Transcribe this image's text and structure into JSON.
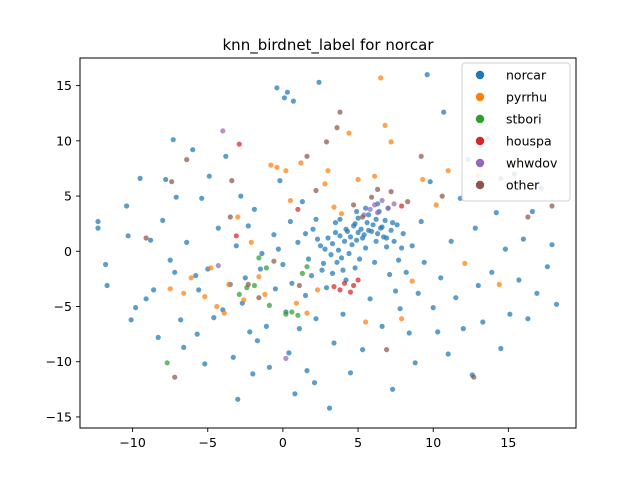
{
  "chart_data": {
    "type": "scatter",
    "title": "knn_birdnet_label for norcar",
    "xlabel": "",
    "ylabel": "",
    "xlim": [
      -13.5,
      19.5
    ],
    "ylim": [
      -16,
      17.5
    ],
    "xticks": [
      -10,
      -5,
      0,
      5,
      10,
      15
    ],
    "yticks": [
      -15,
      -10,
      -5,
      0,
      5,
      10,
      15
    ],
    "grid": false,
    "legend_position": "top-right",
    "series": [
      {
        "name": "norcar",
        "color": "#1f77b4",
        "points": [
          [
            -12.3,
            2.7
          ],
          [
            -12.3,
            2.1
          ],
          [
            -11.8,
            -1.2
          ],
          [
            -11.7,
            -3.1
          ],
          [
            -10.4,
            4.1
          ],
          [
            -10.3,
            1.4
          ],
          [
            -10.1,
            -6.2
          ],
          [
            -9.8,
            -5.1
          ],
          [
            -9.5,
            6.6
          ],
          [
            -9.1,
            -4.3
          ],
          [
            -8.8,
            1.0
          ],
          [
            -8.6,
            -3.5
          ],
          [
            -8.3,
            -7.8
          ],
          [
            -8.0,
            2.8
          ],
          [
            -7.8,
            6.5
          ],
          [
            -7.5,
            -0.8
          ],
          [
            -7.3,
            10.1
          ],
          [
            -7.2,
            -1.9
          ],
          [
            -7.1,
            4.9
          ],
          [
            -6.8,
            -6.2
          ],
          [
            -6.6,
            -8.7
          ],
          [
            -6.4,
            0.8
          ],
          [
            -6.0,
            9.2
          ],
          [
            -5.8,
            -2.2
          ],
          [
            -5.7,
            -7.5
          ],
          [
            -5.6,
            -3.5
          ],
          [
            -5.4,
            4.8
          ],
          [
            -5.2,
            -10.2
          ],
          [
            -5.0,
            -1.6
          ],
          [
            -4.9,
            6.8
          ],
          [
            -4.6,
            -6.0
          ],
          [
            -4.3,
            2.1
          ],
          [
            -4.0,
            -5.3
          ],
          [
            -3.8,
            8.6
          ],
          [
            -3.5,
            -3.0
          ],
          [
            -3.3,
            -9.6
          ],
          [
            -3.1,
            0.5
          ],
          [
            -3.0,
            -13.4
          ],
          [
            -2.8,
            5.0
          ],
          [
            -2.7,
            -4.7
          ],
          [
            -2.5,
            -2.4
          ],
          [
            -2.3,
            2.3
          ],
          [
            -2.2,
            -7.3
          ],
          [
            -2.0,
            -11.1
          ],
          [
            -1.9,
            3.8
          ],
          [
            -1.7,
            -8.1
          ],
          [
            -1.5,
            -1.6
          ],
          [
            -1.4,
            -0.2
          ],
          [
            -1.1,
            -6.8
          ],
          [
            -0.9,
            -10.5
          ],
          [
            -0.6,
            1.5
          ],
          [
            -0.5,
            -3.4
          ],
          [
            -0.4,
            14.8
          ],
          [
            -0.2,
            6.4
          ],
          [
            0.0,
            -1.2
          ],
          [
            0.1,
            13.9
          ],
          [
            0.2,
            -5.5
          ],
          [
            0.3,
            14.4
          ],
          [
            0.4,
            -9.2
          ],
          [
            0.5,
            2.7
          ],
          [
            0.6,
            -2.9
          ],
          [
            0.7,
            13.6
          ],
          [
            0.8,
            -12.9
          ],
          [
            1.0,
            0.8
          ],
          [
            1.1,
            -7.0
          ],
          [
            1.3,
            4.5
          ],
          [
            1.5,
            -4.0
          ],
          [
            1.6,
            -10.8
          ],
          [
            1.7,
            -0.7
          ],
          [
            1.9,
            -2.2
          ],
          [
            2.0,
            2.0
          ],
          [
            2.1,
            -11.9
          ],
          [
            2.2,
            -6.1
          ],
          [
            2.3,
            1.1
          ],
          [
            2.4,
            15.3
          ],
          [
            2.5,
            0.5
          ],
          [
            2.6,
            -1.7
          ],
          [
            2.8,
            0.2
          ],
          [
            2.9,
            -3.3
          ],
          [
            3.0,
            1.2
          ],
          [
            3.1,
            -14.2
          ],
          [
            3.2,
            -0.3
          ],
          [
            3.3,
            0.7
          ],
          [
            3.4,
            -8.3
          ],
          [
            3.5,
            2.6
          ],
          [
            3.6,
            -1.0
          ],
          [
            3.7,
            0.1
          ],
          [
            3.8,
            1.4
          ],
          [
            3.9,
            -0.6
          ],
          [
            4.0,
            -5.7
          ],
          [
            4.1,
            0.9
          ],
          [
            4.2,
            -2.6
          ],
          [
            4.3,
            1.8
          ],
          [
            4.4,
            -0.2
          ],
          [
            4.5,
            -11.0
          ],
          [
            4.6,
            0.6
          ],
          [
            4.7,
            2.3
          ],
          [
            4.8,
            -1.5
          ],
          [
            4.9,
            1.0
          ],
          [
            5.0,
            3.0
          ],
          [
            5.1,
            -0.7
          ],
          [
            5.2,
            2.0
          ],
          [
            5.3,
            -8.9
          ],
          [
            5.4,
            1.5
          ],
          [
            5.5,
            0.3
          ],
          [
            5.6,
            2.6
          ],
          [
            5.7,
            3.3
          ],
          [
            5.8,
            -4.3
          ],
          [
            5.9,
            1.8
          ],
          [
            6.0,
            2.4
          ],
          [
            6.1,
            -1.0
          ],
          [
            6.2,
            2.9
          ],
          [
            6.3,
            1.6
          ],
          [
            6.4,
            3.6
          ],
          [
            6.5,
            2.1
          ],
          [
            6.6,
            -6.8
          ],
          [
            6.7,
            1.3
          ],
          [
            6.8,
            2.8
          ],
          [
            6.9,
            0.4
          ],
          [
            7.0,
            3.9
          ],
          [
            7.1,
            -2.1
          ],
          [
            7.2,
            1.9
          ],
          [
            7.3,
            -12.5
          ],
          [
            7.4,
            0.9
          ],
          [
            7.5,
            -3.6
          ],
          [
            7.6,
            2.4
          ],
          [
            7.7,
            -0.8
          ],
          [
            7.8,
            -5.2
          ],
          [
            7.9,
            0.3
          ],
          [
            8.0,
            1.6
          ],
          [
            8.2,
            -1.9
          ],
          [
            8.4,
            -7.4
          ],
          [
            8.6,
            0.5
          ],
          [
            8.8,
            -10.1
          ],
          [
            9.0,
            -3.8
          ],
          [
            9.2,
            2.7
          ],
          [
            9.4,
            -1.0
          ],
          [
            9.6,
            16.0
          ],
          [
            9.8,
            6.3
          ],
          [
            10.0,
            -5.1
          ],
          [
            10.3,
            -7.3
          ],
          [
            10.5,
            -2.4
          ],
          [
            10.7,
            12.6
          ],
          [
            11.0,
            -9.3
          ],
          [
            11.2,
            0.9
          ],
          [
            11.5,
            -4.2
          ],
          [
            11.8,
            4.8
          ],
          [
            12.0,
            -7.0
          ],
          [
            12.3,
            8.3
          ],
          [
            12.6,
            -11.2
          ],
          [
            12.8,
            2.1
          ],
          [
            13.0,
            -3.1
          ],
          [
            13.3,
            -6.4
          ],
          [
            13.6,
            10.2
          ],
          [
            13.9,
            -1.9
          ],
          [
            14.2,
            3.5
          ],
          [
            14.5,
            -8.8
          ],
          [
            14.8,
            0.2
          ],
          [
            15.1,
            -5.7
          ],
          [
            15.4,
            7.0
          ],
          [
            15.7,
            -2.6
          ],
          [
            16.0,
            1.1
          ],
          [
            16.3,
            -6.1
          ],
          [
            16.6,
            3.6
          ],
          [
            16.9,
            -3.8
          ],
          [
            17.2,
            5.7
          ],
          [
            17.6,
            -1.4
          ],
          [
            17.9,
            0.6
          ],
          [
            18.2,
            -4.8
          ],
          [
            3.8,
            2.9
          ],
          [
            4.2,
            2.0
          ],
          [
            4.8,
            2.5
          ],
          [
            5.3,
            1.2
          ],
          [
            5.7,
            1.9
          ],
          [
            6.2,
            0.9
          ],
          [
            6.6,
            2.2
          ],
          [
            5.0,
            1.7
          ],
          [
            4.5,
            1.3
          ],
          [
            3.5,
            1.7
          ],
          [
            6.9,
            1.2
          ],
          [
            7.3,
            2.6
          ],
          [
            5.5,
            3.9
          ],
          [
            6.3,
            4.3
          ],
          [
            4.9,
            3.6
          ],
          [
            4.0,
            -1.7
          ],
          [
            3.3,
            -2.0
          ],
          [
            2.7,
            -1.1
          ],
          [
            1.5,
            1.6
          ],
          [
            2.2,
            2.9
          ],
          [
            -0.3,
            0.2
          ]
        ]
      },
      {
        "name": "pyrrhu",
        "color": "#ff7f0e",
        "points": [
          [
            -7.5,
            -3.4
          ],
          [
            -6.6,
            -3.8
          ],
          [
            -6.1,
            -2.4
          ],
          [
            -5.2,
            -4.1
          ],
          [
            -4.8,
            -1.5
          ],
          [
            -4.4,
            -5.0
          ],
          [
            -3.9,
            -5.6
          ],
          [
            -3.6,
            -3.0
          ],
          [
            -3.0,
            3.1
          ],
          [
            -2.6,
            -4.4
          ],
          [
            -2.1,
            0.8
          ],
          [
            -1.6,
            -2.3
          ],
          [
            -1.2,
            -3.9
          ],
          [
            -0.8,
            7.8
          ],
          [
            -0.4,
            7.6
          ],
          [
            0.2,
            7.3
          ],
          [
            0.5,
            4.6
          ],
          [
            1.2,
            8.0
          ],
          [
            1.6,
            -5.6
          ],
          [
            2.3,
            -3.5
          ],
          [
            2.8,
            6.1
          ],
          [
            3.4,
            4.0
          ],
          [
            3.9,
            3.4
          ],
          [
            4.4,
            10.7
          ],
          [
            5.0,
            6.5
          ],
          [
            5.5,
            -6.4
          ],
          [
            6.1,
            6.8
          ],
          [
            6.5,
            15.7
          ],
          [
            7.2,
            9.9
          ],
          [
            7.9,
            -6.1
          ],
          [
            8.6,
            -2.7
          ],
          [
            9.3,
            6.5
          ],
          [
            10.2,
            4.2
          ],
          [
            11.0,
            7.3
          ],
          [
            12.1,
            -1.1
          ],
          [
            13.0,
            6.9
          ],
          [
            14.4,
            -3.0
          ],
          [
            6.8,
            11.4
          ],
          [
            3.0,
            7.3
          ],
          [
            0.9,
            -4.7
          ]
        ]
      },
      {
        "name": "stbori",
        "color": "#2ca02c",
        "points": [
          [
            -7.7,
            -10.1
          ],
          [
            -2.9,
            -3.9
          ],
          [
            -2.4,
            -3.3
          ],
          [
            -1.9,
            -3.1
          ],
          [
            -1.6,
            -0.6
          ],
          [
            -1.1,
            -1.5
          ],
          [
            -0.9,
            -4.9
          ],
          [
            0.2,
            -5.7
          ],
          [
            0.6,
            -5.5
          ],
          [
            1.0,
            -5.8
          ],
          [
            1.3,
            -2.0
          ],
          [
            1.6,
            -1.4
          ]
        ]
      },
      {
        "name": "houspa",
        "color": "#d62728",
        "points": [
          [
            -2.9,
            9.7
          ],
          [
            -3.1,
            1.4
          ],
          [
            3.4,
            -3.2
          ],
          [
            3.8,
            -3.5
          ],
          [
            4.1,
            -2.9
          ],
          [
            4.5,
            -3.7
          ],
          [
            4.7,
            -3.1
          ],
          [
            5.0,
            -2.6
          ],
          [
            1.0,
            3.8
          ],
          [
            7.9,
            4.1
          ]
        ]
      },
      {
        "name": "whwdov",
        "color": "#9467bd",
        "points": [
          [
            -4.0,
            10.9
          ],
          [
            -4.3,
            -1.3
          ],
          [
            0.2,
            -9.7
          ],
          [
            5.4,
            3.3
          ],
          [
            5.8,
            3.8
          ],
          [
            6.1,
            4.2
          ],
          [
            6.3,
            3.5
          ],
          [
            6.6,
            4.6
          ],
          [
            7.0,
            3.9
          ],
          [
            7.4,
            4.3
          ]
        ]
      },
      {
        "name": "other",
        "color": "#8c564b",
        "points": [
          [
            -9.1,
            1.2
          ],
          [
            -7.4,
            6.3
          ],
          [
            -6.4,
            8.3
          ],
          [
            -3.4,
            6.4
          ],
          [
            -3.5,
            3.1
          ],
          [
            -2.3,
            -3.0
          ],
          [
            -1.6,
            -4.2
          ],
          [
            -0.6,
            -0.9
          ],
          [
            1.1,
            -3.1
          ],
          [
            1.6,
            8.6
          ],
          [
            2.2,
            5.5
          ],
          [
            2.9,
            9.9
          ],
          [
            3.8,
            12.6
          ],
          [
            4.7,
            4.2
          ],
          [
            5.3,
            3.1
          ],
          [
            5.9,
            4.9
          ],
          [
            6.3,
            5.6
          ],
          [
            6.9,
            -8.9
          ],
          [
            7.2,
            5.4
          ],
          [
            8.3,
            4.5
          ],
          [
            9.2,
            8.6
          ],
          [
            10.6,
            5.0
          ],
          [
            12.7,
            -11.4
          ],
          [
            14.5,
            6.6
          ],
          [
            16.3,
            3.1
          ],
          [
            17.9,
            4.1
          ],
          [
            3.6,
            11.2
          ],
          [
            -7.2,
            -11.4
          ]
        ]
      }
    ]
  }
}
